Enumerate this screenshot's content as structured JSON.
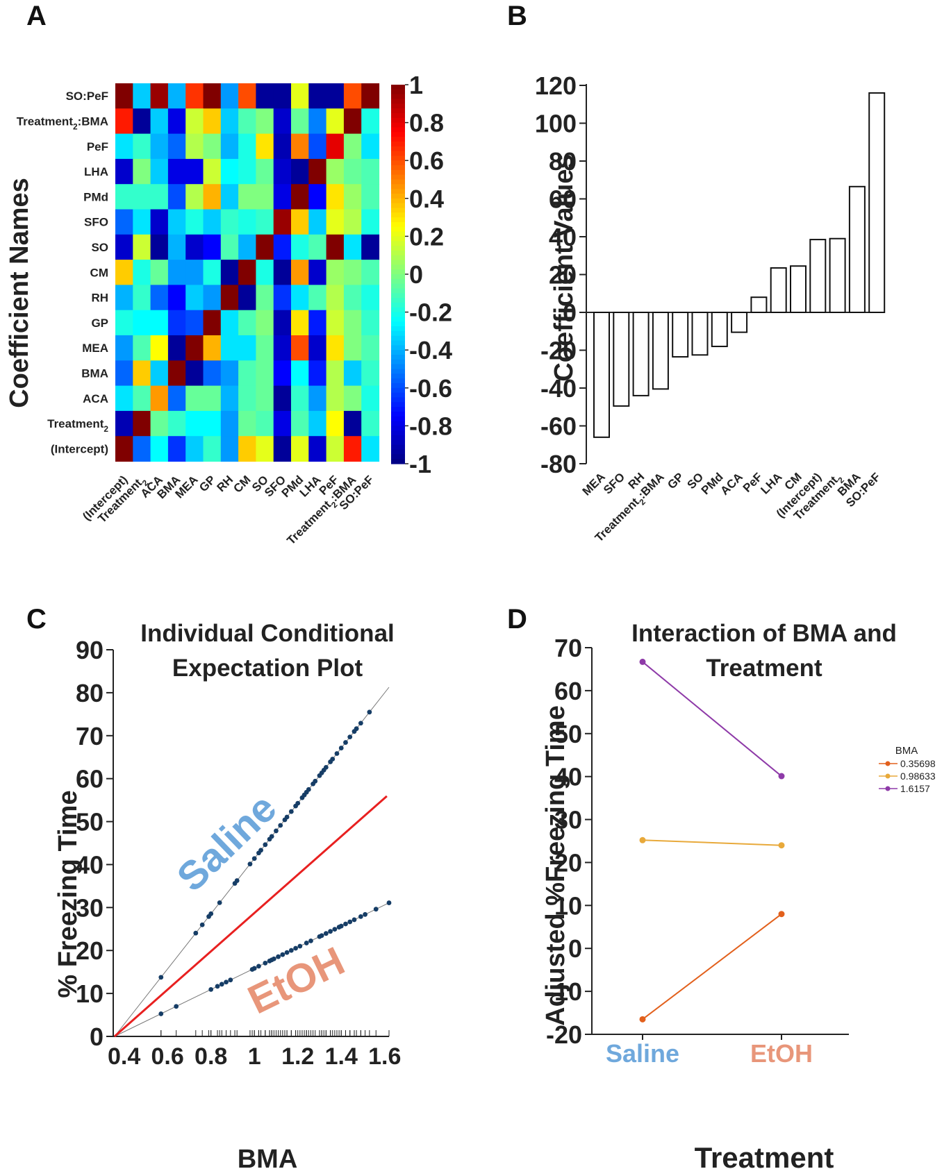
{
  "panels": {
    "a": "A",
    "b": "B",
    "c": "C",
    "d": "D"
  },
  "colors": {
    "saline": "#6fa8dc",
    "etoh": "#e8967a",
    "bma_low": "#e2601c",
    "bma_mid": "#e8a93a",
    "bma_high": "#8e3aa8",
    "ice_points": "#163d66",
    "ice_mean": "#e82020"
  },
  "chart_data": [
    {
      "type": "heatmap",
      "panel": "A",
      "ylabel": "Coefficient Names",
      "row_labels": [
        "SO:PeF",
        "Treatment:BMA",
        "PeF",
        "LHA",
        "PMd",
        "SFO",
        "SO",
        "CM",
        "RH",
        "GP",
        "MEA",
        "BMA",
        "ACA",
        "Treatment",
        "(Intercept)"
      ],
      "col_labels": [
        "(Intercept)",
        "Treatment",
        "ACA",
        "BMA",
        "MEA",
        "GP",
        "RH",
        "CM",
        "SO",
        "SFO",
        "PMd",
        "LHA",
        "PeF",
        "Treatment:BMA",
        "SO:PeF"
      ],
      "subscript": "2",
      "colorbar_ticks": [
        "1",
        "0.8",
        "0.6",
        "0.4",
        "0.2",
        "0",
        "-0.2",
        "-0.4",
        "-0.6",
        "-0.8",
        "-1"
      ],
      "colorbar_range": [
        -1,
        1
      ],
      "values": [
        [
          1.0,
          -0.35,
          0.95,
          -0.4,
          0.65,
          1.0,
          -0.45,
          0.6,
          -0.95,
          -0.95,
          0.2,
          -0.95,
          -0.95,
          0.6,
          1.0
        ],
        [
          0.7,
          -0.95,
          -0.35,
          -0.8,
          0.15,
          0.35,
          -0.35,
          -0.1,
          0.0,
          -0.85,
          -0.05,
          -0.5,
          0.2,
          1.0,
          -0.2
        ],
        [
          -0.3,
          -0.15,
          -0.4,
          -0.55,
          0.1,
          0.0,
          -0.4,
          -0.2,
          0.3,
          -0.9,
          0.5,
          -0.6,
          0.8,
          0.0,
          -0.3
        ],
        [
          -0.85,
          0.0,
          -0.35,
          -0.8,
          -0.8,
          0.15,
          -0.25,
          -0.2,
          -0.05,
          -0.85,
          -0.95,
          1.0,
          0.05,
          -0.05,
          -0.1
        ],
        [
          -0.15,
          -0.15,
          -0.15,
          -0.6,
          0.1,
          0.4,
          -0.35,
          0.0,
          0.0,
          -0.8,
          1.0,
          -0.75,
          0.3,
          0.05,
          -0.1
        ],
        [
          -0.55,
          -0.3,
          -0.85,
          -0.35,
          -0.2,
          -0.35,
          -0.15,
          -0.2,
          -0.15,
          0.95,
          0.35,
          -0.35,
          0.2,
          0.1,
          -0.2
        ],
        [
          -0.85,
          0.15,
          -0.95,
          -0.4,
          -0.85,
          -0.75,
          -0.1,
          -0.4,
          1.0,
          -0.7,
          -0.2,
          -0.1,
          1.0,
          -0.3,
          -0.95
        ],
        [
          0.35,
          -0.2,
          -0.05,
          -0.45,
          -0.45,
          -0.2,
          -0.95,
          1.0,
          -0.2,
          -0.95,
          0.45,
          -0.85,
          0.05,
          0.0,
          -0.1
        ],
        [
          -0.4,
          -0.15,
          -0.55,
          -0.75,
          -0.35,
          -0.45,
          1.0,
          -0.95,
          -0.05,
          -0.65,
          -0.3,
          -0.1,
          0.1,
          -0.1,
          -0.2
        ],
        [
          -0.2,
          -0.25,
          -0.25,
          -0.65,
          -0.6,
          1.0,
          -0.3,
          -0.1,
          0.0,
          -0.9,
          0.3,
          -0.7,
          0.15,
          0.0,
          -0.15
        ],
        [
          -0.45,
          -0.1,
          0.25,
          -0.95,
          1.0,
          0.4,
          -0.3,
          -0.3,
          -0.05,
          -0.85,
          0.6,
          -0.85,
          0.3,
          0.0,
          -0.1
        ],
        [
          -0.55,
          0.35,
          -0.35,
          1.0,
          -0.95,
          -0.55,
          -0.45,
          -0.1,
          -0.05,
          -0.75,
          -0.25,
          -0.7,
          0.1,
          -0.35,
          -0.15
        ],
        [
          -0.3,
          -0.1,
          0.45,
          -0.55,
          -0.05,
          -0.05,
          -0.4,
          -0.1,
          -0.05,
          -0.95,
          -0.15,
          -0.45,
          0.1,
          0.0,
          -0.2
        ],
        [
          -0.9,
          1.0,
          -0.05,
          -0.15,
          -0.25,
          -0.25,
          -0.45,
          -0.05,
          -0.1,
          -0.8,
          -0.1,
          -0.35,
          0.25,
          -0.95,
          -0.15
        ],
        [
          1.0,
          -0.55,
          -0.25,
          -0.65,
          -0.35,
          -0.15,
          -0.45,
          0.35,
          0.2,
          -0.95,
          0.2,
          -0.85,
          0.15,
          0.7,
          -0.3
        ]
      ]
    },
    {
      "type": "bar",
      "panel": "B",
      "ylabel": "Coefficient Values",
      "categories": [
        "MEA",
        "SFO",
        "RH",
        "Treatment:BMA",
        "GP",
        "SO",
        "PMd",
        "ACA",
        "PeF",
        "LHA",
        "CM",
        "(Intercept)",
        "Treatment",
        "BMA",
        "SO:PeF"
      ],
      "subscript": "2",
      "values": [
        -66,
        -49.5,
        -44,
        -40.5,
        -23.5,
        -22.5,
        -18,
        -10.5,
        8,
        23.5,
        24.5,
        38.5,
        39,
        66.5,
        116
      ],
      "ylim": [
        -80,
        120
      ],
      "yticks": [
        "120",
        "100",
        "80",
        "60",
        "40",
        "20",
        "0",
        "-20",
        "-40",
        "-60",
        "-80"
      ]
    },
    {
      "type": "scatter",
      "panel": "C",
      "title_lines": [
        "Individual Conditional",
        "Expectation Plot"
      ],
      "xlabel": "BMA",
      "ylabel": "% Freezing Time",
      "xlim": [
        0.35,
        1.62
      ],
      "ylim": [
        0,
        90
      ],
      "xticks": [
        "0.4",
        "0.6",
        "0.8",
        "1",
        "1.2",
        "1.4",
        "1.6"
      ],
      "yticks": [
        "90",
        "80",
        "70",
        "60",
        "50",
        "40",
        "30",
        "20",
        "10",
        "0"
      ],
      "line_labels": [
        "Saline",
        "EtOH"
      ],
      "saline_slope": 64.3,
      "etoh_slope": 24.6,
      "mean_slope": 44.6,
      "x0": 0.356,
      "saline_x": [
        0.57,
        0.73,
        0.76,
        0.79,
        0.8,
        0.84,
        0.91,
        0.92,
        0.98,
        1.0,
        1.02,
        1.03,
        1.05,
        1.07,
        1.08,
        1.1,
        1.12,
        1.14,
        1.15,
        1.17,
        1.19,
        1.2,
        1.22,
        1.23,
        1.24,
        1.25,
        1.27,
        1.28,
        1.3,
        1.31,
        1.32,
        1.33,
        1.35,
        1.36,
        1.38,
        1.4,
        1.42,
        1.44,
        1.46,
        1.47,
        1.49,
        1.53
      ],
      "etoh_x": [
        0.57,
        0.64,
        0.8,
        0.83,
        0.85,
        0.87,
        0.89,
        0.99,
        1.0,
        1.02,
        1.05,
        1.07,
        1.08,
        1.09,
        1.11,
        1.13,
        1.15,
        1.17,
        1.19,
        1.21,
        1.24,
        1.26,
        1.3,
        1.31,
        1.33,
        1.35,
        1.37,
        1.39,
        1.4,
        1.42,
        1.44,
        1.46,
        1.49,
        1.51,
        1.56,
        1.62
      ]
    },
    {
      "type": "line",
      "panel": "D",
      "title_lines": [
        "Interaction of BMA and",
        "Treatment"
      ],
      "xlabel": "Treatment",
      "ylabel": "Adjusted %Freezing Time",
      "categories": [
        "Saline",
        "EtOH"
      ],
      "ylim": [
        -20,
        70
      ],
      "yticks": [
        "70",
        "60",
        "50",
        "40",
        "30",
        "20",
        "10",
        "0",
        "-10",
        "-20"
      ],
      "legend_title": "BMA",
      "series": [
        {
          "name": "0.35698",
          "values": [
            -16.5,
            8
          ]
        },
        {
          "name": "0.98633",
          "values": [
            25.2,
            24
          ]
        },
        {
          "name": "1.6157",
          "values": [
            66.7,
            40.1
          ]
        }
      ]
    }
  ]
}
